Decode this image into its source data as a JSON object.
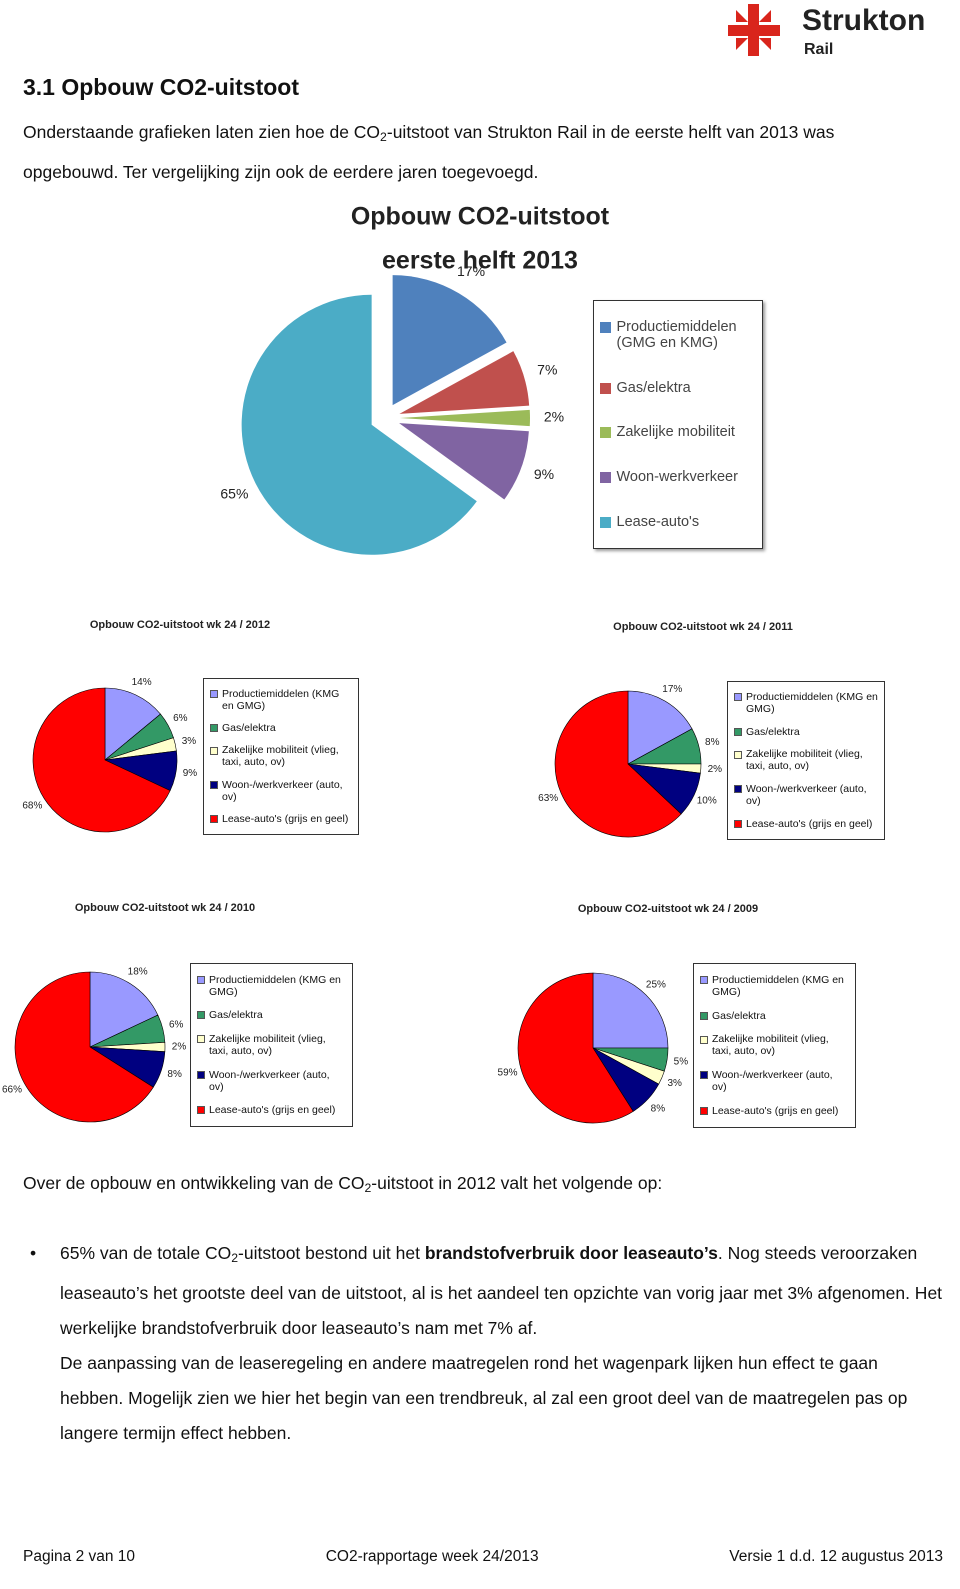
{
  "header": {
    "logo_name": "Strukton",
    "logo_sub": "Rail"
  },
  "section": {
    "heading": "3.1 Opbouw CO2-uitstoot",
    "intro": [
      "Onderstaande grafieken laten zien hoe de CO",
      "2",
      "-uitstoot van Strukton Rail in de eerste helft van 2013 was opgebouwd. Ter vergelijking zijn ook de eerdere jaren toegevoegd."
    ]
  },
  "chart_data": [
    {
      "type": "pie",
      "title": "Opbouw CO2-uitstoot",
      "subtitle": "eerste helft 2013",
      "exploded": true,
      "categories": [
        "Productiemiddelen (GMG en KMG)",
        "Gas/elektra",
        "Zakelijke mobiliteit",
        "Woon-werkverkeer",
        "Lease-auto's"
      ],
      "values": [
        17,
        7,
        2,
        9,
        65
      ],
      "value_labels": [
        "17%",
        "7%",
        "2%",
        "9%",
        "65%"
      ],
      "colors": [
        "#4f81bd",
        "#c0504d",
        "#9bbb59",
        "#8064a2",
        "#4bacc6"
      ]
    },
    {
      "type": "pie",
      "title": "Opbouw CO2-uitstoot wk 24 / 2012",
      "exploded": false,
      "categories": [
        "Productiemiddelen (KMG en GMG)",
        "Gas/elektra",
        "Zakelijke mobiliteit (vlieg, taxi, auto, ov)",
        "Woon-/werkverkeer (auto, ov)",
        "Lease-auto's (grijs en geel)"
      ],
      "values": [
        14,
        6,
        3,
        9,
        68
      ],
      "value_labels": [
        "14%",
        "6%",
        "3%",
        "9%",
        "68%"
      ],
      "colors": [
        "#9999ff",
        "#339966",
        "#ffffcc",
        "#000080",
        "#ff0000"
      ]
    },
    {
      "type": "pie",
      "title": "Opbouw CO2-uitstoot wk 24 / 2011",
      "exploded": false,
      "categories": [
        "Productiemiddelen (KMG en GMG)",
        "Gas/elektra",
        "Zakelijke mobiliteit (vlieg, taxi, auto, ov)",
        "Woon-/werkverkeer (auto, ov)",
        "Lease-auto's (grijs en geel)"
      ],
      "values": [
        17,
        8,
        2,
        10,
        63
      ],
      "value_labels": [
        "17%",
        "8%",
        "2%",
        "10%",
        "63%"
      ],
      "colors": [
        "#9999ff",
        "#339966",
        "#ffffcc",
        "#000080",
        "#ff0000"
      ]
    },
    {
      "type": "pie",
      "title": "Opbouw CO2-uitstoot wk 24 / 2010",
      "exploded": false,
      "categories": [
        "Productiemiddelen (KMG en GMG)",
        "Gas/elektra",
        "Zakelijke mobiliteit (vlieg, taxi, auto, ov)",
        "Woon-/werkverkeer (auto, ov)",
        "Lease-auto's (grijs en geel)"
      ],
      "values": [
        18,
        6,
        2,
        8,
        66
      ],
      "value_labels": [
        "18%",
        "6%",
        "2%",
        "8%",
        "66%"
      ],
      "colors": [
        "#9999ff",
        "#339966",
        "#ffffcc",
        "#000080",
        "#ff0000"
      ]
    },
    {
      "type": "pie",
      "title": "Opbouw CO2-uitstoot wk 24 / 2009",
      "exploded": false,
      "categories": [
        "Productiemiddelen (KMG en GMG)",
        "Gas/elektra",
        "Zakelijke mobiliteit (vlieg, taxi, auto, ov)",
        "Woon-/werkverkeer (auto, ov)",
        "Lease-auto's (grijs en geel)"
      ],
      "values": [
        25,
        5,
        3,
        8,
        59
      ],
      "value_labels": [
        "25%",
        "5%",
        "3%",
        "8%",
        "59%"
      ],
      "colors": [
        "#9999ff",
        "#339966",
        "#ffffcc",
        "#000080",
        "#ff0000"
      ]
    }
  ],
  "body": {
    "lead": [
      "Over de opbouw en ontwikkeling van de CO",
      "2",
      "-uitstoot in 2012 valt het volgende op:"
    ],
    "bullet": [
      "65% van de totale CO",
      "2",
      "-uitstoot bestond uit het ",
      "brandstofverbruik door leaseauto’s",
      ". Nog steeds veroorzaken leaseauto’s het grootste deel van de uitstoot, al is het aandeel ten opzichte van vorig jaar met 3% afgenomen. Het werkelijke brandstofverbruik door leaseauto’s nam met 7% af.",
      "De aanpassing van de leaseregeling en andere maatregelen rond het wagenpark lijken hun effect te gaan hebben. Mogelijk zien we hier het begin van een trendbreuk, al zal een groot deel van de maatregelen pas op langere termijn effect hebben."
    ]
  },
  "footer": {
    "left": "Pagina 2 van 10",
    "center": "CO2-rapportage week 24/2013",
    "right": "Versie 1 d.d. 12 augustus 2013"
  }
}
